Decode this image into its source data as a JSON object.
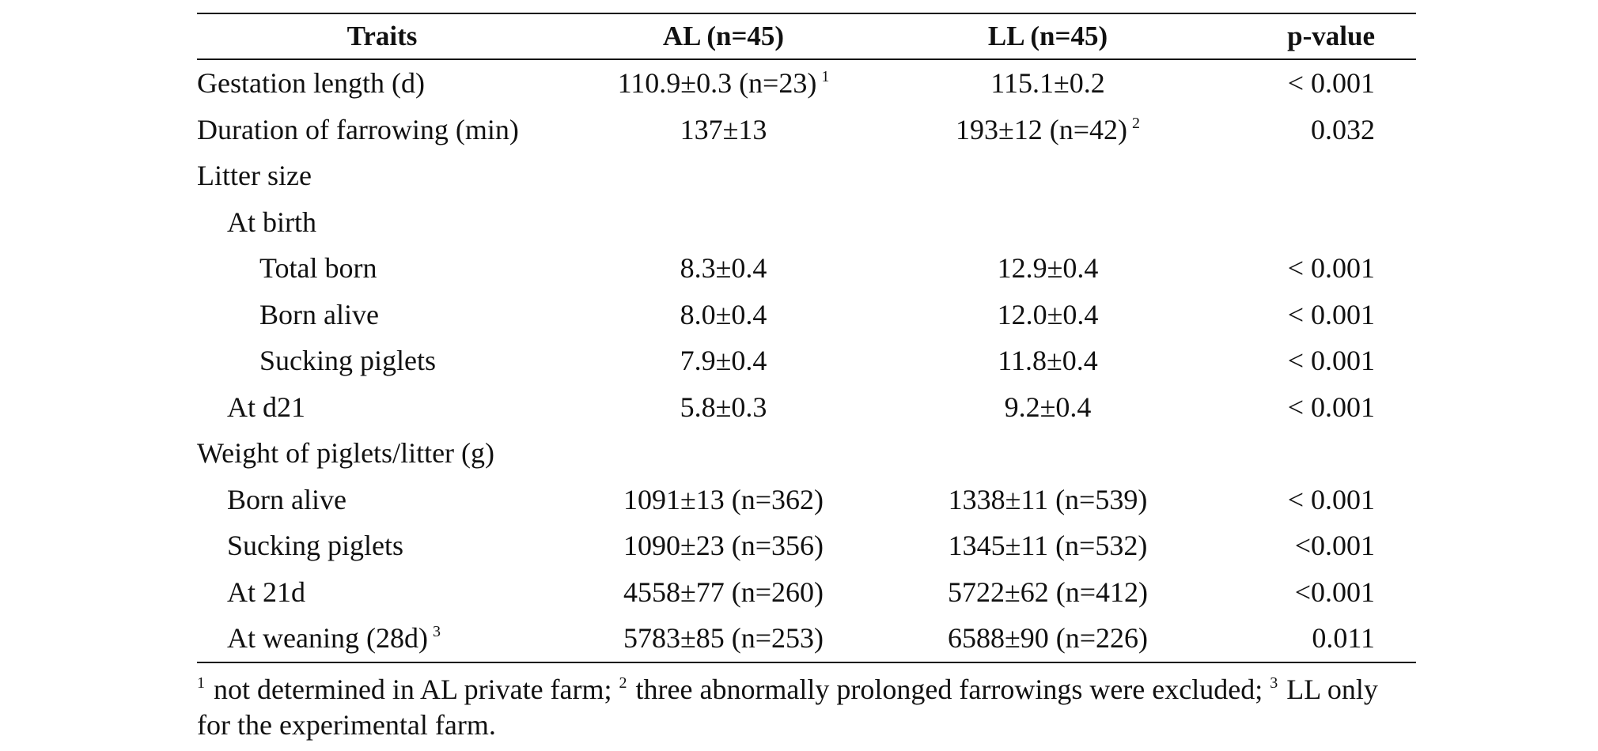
{
  "table": {
    "headers": {
      "traits": "Traits",
      "al": "AL (n=45)",
      "ll": "LL (n=45)",
      "p": "p-value"
    },
    "rows": [
      {
        "trait": "Gestation length (d)",
        "al": "110.9±0.3 (n=23)",
        "al_sup": "1",
        "ll": "115.1±0.2",
        "ll_sup": "",
        "p": "< 0.001"
      },
      {
        "trait": "Duration of farrowing (min)",
        "al": "137±13",
        "al_sup": "",
        "ll": "193±12 (n=42)",
        "ll_sup": "2",
        "p": "0.032"
      },
      {
        "trait": "Litter size",
        "al": "",
        "ll": "",
        "p": ""
      },
      {
        "trait": "At birth",
        "al": "",
        "ll": "",
        "p": ""
      },
      {
        "trait": "Total born",
        "al": "8.3±0.4",
        "ll": "12.9±0.4",
        "p": "< 0.001"
      },
      {
        "trait": "Born alive",
        "al": "8.0±0.4",
        "ll": "12.0±0.4",
        "p": "< 0.001"
      },
      {
        "trait": "Sucking piglets",
        "al": "7.9±0.4",
        "ll": "11.8±0.4",
        "p": "< 0.001"
      },
      {
        "trait": "At d21",
        "al": "5.8±0.3",
        "ll": "9.2±0.4",
        "p": "< 0.001"
      },
      {
        "trait": "Weight of piglets/litter (g)",
        "al": "",
        "ll": "",
        "p": ""
      },
      {
        "trait": "Born alive",
        "al": "1091±13 (n=362)",
        "ll": "1338±11 (n=539)",
        "p": "< 0.001"
      },
      {
        "trait": "Sucking piglets",
        "al": "1090±23 (n=356)",
        "ll": "1345±11 (n=532)",
        "p": "<0.001"
      },
      {
        "trait": "At 21d",
        "al": "4558±77 (n=260)",
        "ll": "5722±62 (n=412)",
        "p": "<0.001"
      },
      {
        "trait": "At weaning (28d)",
        "trait_sup": "3",
        "al": "5783±85 (n=253)",
        "ll": "6588±90 (n=226)",
        "p": "0.011"
      }
    ]
  },
  "footnote": {
    "sup1": "1",
    "text1": " not determined in AL private farm; ",
    "sup2": "2",
    "text2": " three abnormally prolonged farrowings were excluded; ",
    "sup3": "3",
    "text3": " LL only for the experimental farm."
  }
}
